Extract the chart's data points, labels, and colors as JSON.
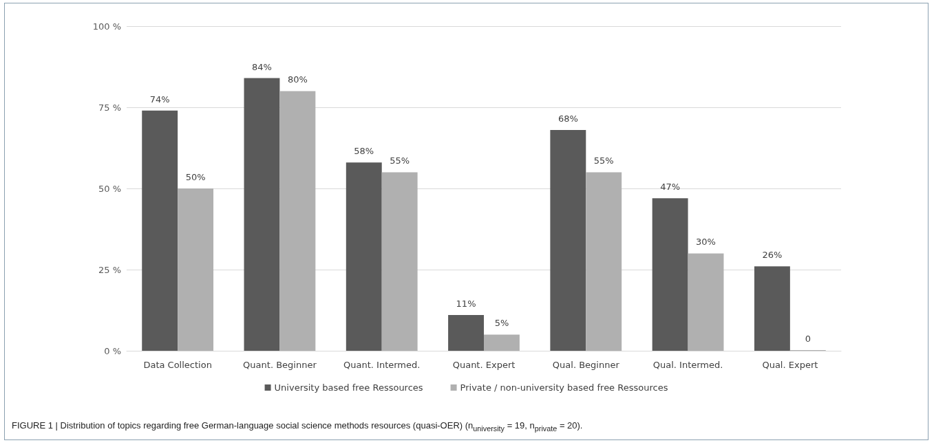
{
  "chart_data": {
    "type": "bar",
    "categories": [
      "Data Collection",
      "Quant. Beginner",
      "Quant. Intermed.",
      "Quant. Expert",
      "Qual. Beginner",
      "Qual. Intermed.",
      "Qual. Expert"
    ],
    "series": [
      {
        "name": "University based free Ressources",
        "color": "#5a5a5a",
        "values": [
          74,
          84,
          58,
          11,
          68,
          47,
          26
        ],
        "value_labels": [
          "74%",
          "84%",
          "58%",
          "11%",
          "68%",
          "47%",
          "26%"
        ]
      },
      {
        "name": "Private / non-university based free Ressources",
        "color": "#b0b0b0",
        "values": [
          50,
          80,
          55,
          5,
          55,
          30,
          0
        ],
        "value_labels": [
          "50%",
          "80%",
          "55%",
          "5%",
          "55%",
          "30%",
          "0"
        ]
      }
    ],
    "ylim": [
      0,
      100
    ],
    "yticks": [
      {
        "value": 0,
        "label": "0 %"
      },
      {
        "value": 25,
        "label": "25 %"
      },
      {
        "value": 50,
        "label": "50 %"
      },
      {
        "value": 75,
        "label": "75 %"
      },
      {
        "value": 100,
        "label": "100 %"
      }
    ],
    "grid": "y",
    "legend": "bottom",
    "annotations": [
      "FIGURE 1 | Distribution of topics regarding free German-language social science methods resources (quasi-OER) (n$_{university}$ = 19, n$_{private}$ = 20)."
    ]
  }
}
